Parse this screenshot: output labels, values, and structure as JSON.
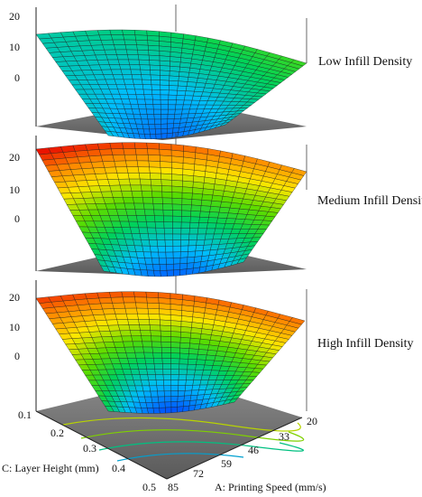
{
  "chart_data": [
    {
      "type": "surface",
      "title": "Low Infill Density",
      "z_ticks": [
        "20",
        "10",
        "0"
      ],
      "z_values": [
        20,
        10,
        0
      ],
      "ylim": [
        -10,
        20
      ]
    },
    {
      "type": "surface",
      "title": "Medium Infill Density",
      "z_ticks": [
        "20",
        "10",
        "0"
      ],
      "z_values": [
        20,
        10,
        0
      ],
      "ylim": [
        -10,
        25
      ]
    },
    {
      "type": "surface",
      "title": "High Infill Density",
      "z_ticks": [
        "20",
        "10",
        "0"
      ],
      "z_values": [
        20,
        10,
        0
      ],
      "ylim": [
        -10,
        25
      ]
    }
  ],
  "axes": {
    "c_label": "C: Layer Height (mm)",
    "c_ticks": [
      "0.1",
      "0.2",
      "0.3",
      "0.4",
      "0.5"
    ],
    "a_label": "A: Printing Speed (mm/s)",
    "a_ticks": [
      "20",
      "33",
      "46",
      "59",
      "72",
      "85"
    ]
  },
  "colors": {
    "grid": "#000000",
    "floor": "#707070",
    "high": "#e00000",
    "low": "#0050ff"
  }
}
